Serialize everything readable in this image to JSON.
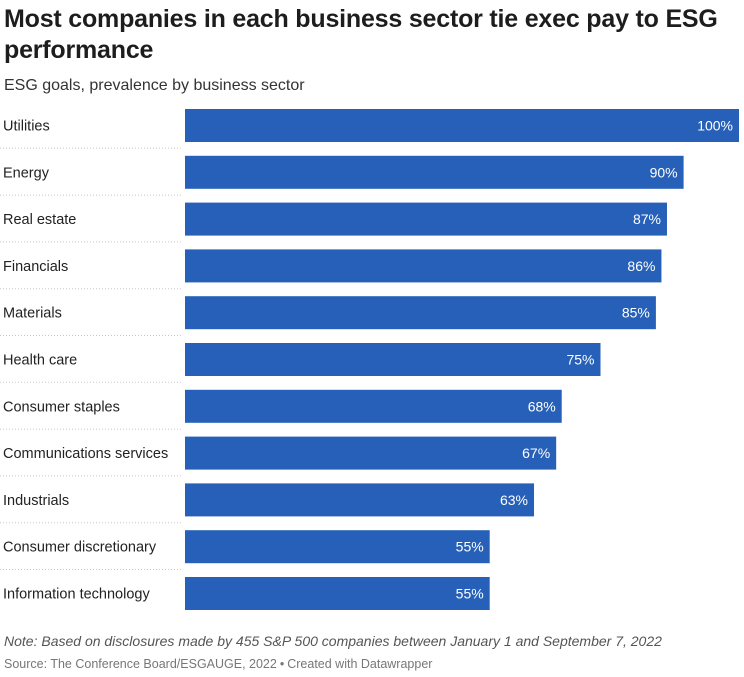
{
  "header": {
    "title": "Most companies in each business sector tie exec pay to ESG performance",
    "subtitle": "ESG goals, prevalence by business sector"
  },
  "footer": {
    "note": "Note: Based on disclosures made by 455 S&P 500 companies between January 1 and September 7, 2022",
    "source": "Source: The Conference Board/ESGAUGE, 2022",
    "separator": "•",
    "credit": "Created with Datawrapper"
  },
  "colors": {
    "bar": "#2660b8",
    "label": "#ffffff",
    "divider": "#c8c8c8"
  },
  "chart_data": {
    "type": "bar",
    "orientation": "horizontal",
    "title": "Most companies in each business sector tie exec pay to ESG performance",
    "subtitle": "ESG goals, prevalence by business sector",
    "categories": [
      "Utilities",
      "Energy",
      "Real estate",
      "Financials",
      "Materials",
      "Health care",
      "Consumer staples",
      "Communications services",
      "Industrials",
      "Consumer discretionary",
      "Information technology"
    ],
    "values": [
      100,
      90,
      87,
      86,
      85,
      75,
      68,
      67,
      63,
      55,
      55
    ],
    "value_labels": [
      "100%",
      "90%",
      "87%",
      "86%",
      "85%",
      "75%",
      "68%",
      "67%",
      "63%",
      "55%",
      "55%"
    ],
    "xlim": [
      0,
      100
    ],
    "unit": "%",
    "legend": "none",
    "grid": false
  }
}
